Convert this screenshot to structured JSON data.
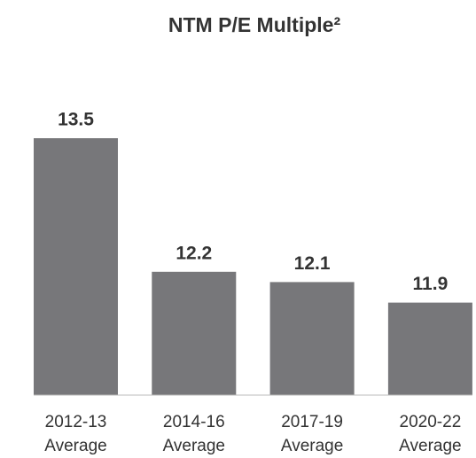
{
  "chart_data": {
    "type": "bar",
    "title": "NTM P/E Multiple²",
    "categories": [
      [
        "2012-13",
        "Average"
      ],
      [
        "2014-16",
        "Average"
      ],
      [
        "2017-19",
        "Average"
      ],
      [
        "2020-22",
        "Average"
      ]
    ],
    "values": [
      13.5,
      12.2,
      12.1,
      11.9
    ],
    "color": "#77777a",
    "ylim": [
      11,
      14
    ]
  }
}
